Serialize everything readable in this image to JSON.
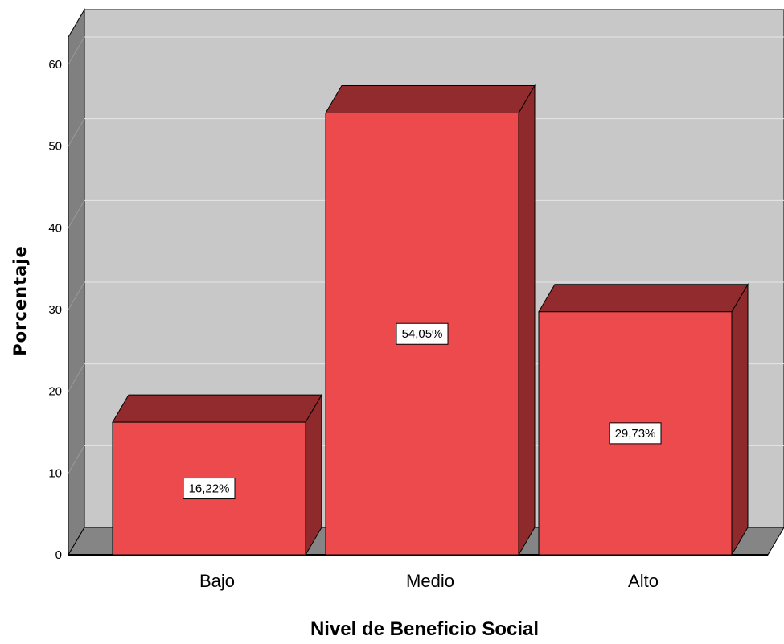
{
  "chart_data": {
    "type": "bar",
    "style": "3d",
    "categories": [
      "Bajo",
      "Medio",
      "Alto"
    ],
    "values": [
      16.22,
      54.05,
      29.73
    ],
    "data_labels": [
      "16,22%",
      "54,05%",
      "29,73%"
    ],
    "xlabel": "Nivel de Beneficio Social",
    "ylabel": "Porcentaje",
    "ylim": [
      0,
      60
    ],
    "yticks": [
      0,
      10,
      20,
      30,
      40,
      50,
      60
    ],
    "grid": true,
    "legend": "none",
    "colors": {
      "bar_front": "#ec4a4c",
      "bar_top": "#922b2d",
      "bar_side": "#8f2a2c",
      "plot_back": "#c8c8c8",
      "plot_side": "#808080",
      "plot_floor": "#858585",
      "grid": "#e6e6e6"
    }
  }
}
